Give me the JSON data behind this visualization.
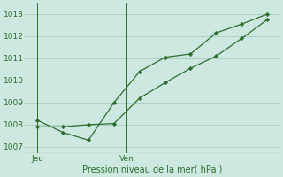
{
  "bg_color": "#cce8e0",
  "grid_color": "#a8ccc4",
  "line_color": "#2d6e2d",
  "line1_x": [
    0,
    1,
    2,
    3,
    4,
    5,
    6,
    7,
    8,
    9
  ],
  "line1_y": [
    1008.2,
    1007.65,
    1007.3,
    1009.0,
    1010.4,
    1011.05,
    1011.2,
    1012.15,
    1012.55,
    1013.0
  ],
  "line2_x": [
    0,
    1,
    2,
    3,
    4,
    5,
    6,
    7,
    8,
    9
  ],
  "line2_y": [
    1007.9,
    1007.9,
    1008.0,
    1008.05,
    1009.2,
    1009.9,
    1010.55,
    1011.1,
    1011.9,
    1012.75
  ],
  "jeu_x": 0,
  "ven_x": 3.5,
  "yticks": [
    1007,
    1008,
    1009,
    1010,
    1011,
    1012,
    1013
  ],
  "xtick_positions": [
    0,
    3.5
  ],
  "xtick_labels": [
    "Jeu",
    "Ven"
  ],
  "xlabel": "Pression niveau de la mer( hPa )",
  "ylim": [
    1006.7,
    1013.5
  ],
  "xlim": [
    -0.5,
    9.5
  ]
}
